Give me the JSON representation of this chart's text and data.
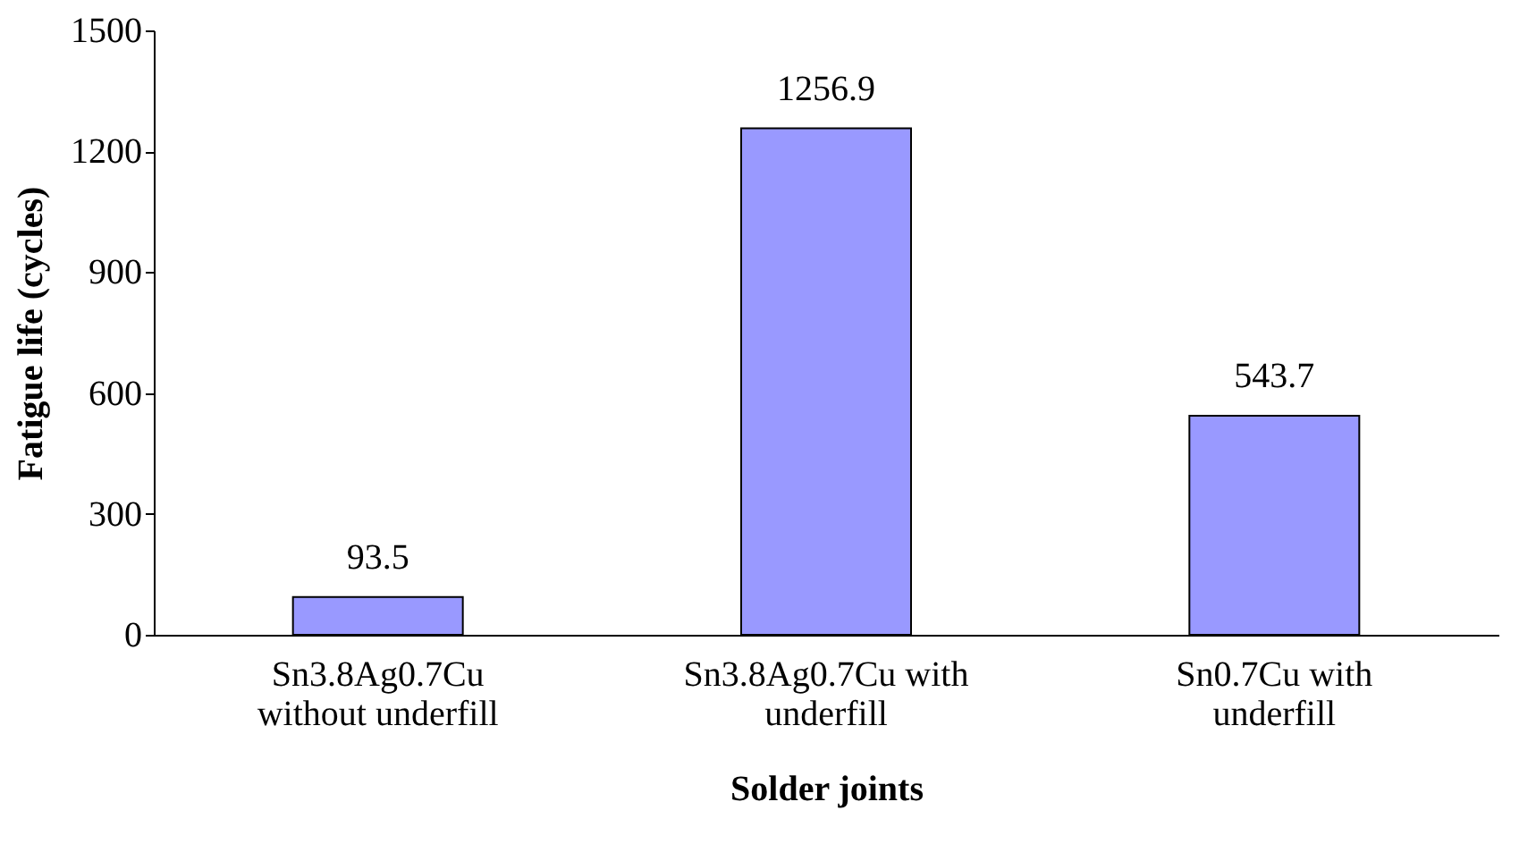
{
  "chart_data": {
    "type": "bar",
    "xlabel": "Solder joints",
    "ylabel": "Fatigue life (cycles)",
    "categories": [
      "Sn3.8Ag0.7Cu without underfill",
      "Sn3.8Ag0.7Cu with underfill",
      "Sn0.7Cu with underfill"
    ],
    "values": [
      93.5,
      1256.9,
      543.7
    ],
    "color": "#9999ff",
    "ylim": [
      0,
      1500
    ],
    "yticks": [
      0,
      300,
      600,
      900,
      1200,
      1500
    ],
    "grid": false,
    "data_labels": true
  }
}
